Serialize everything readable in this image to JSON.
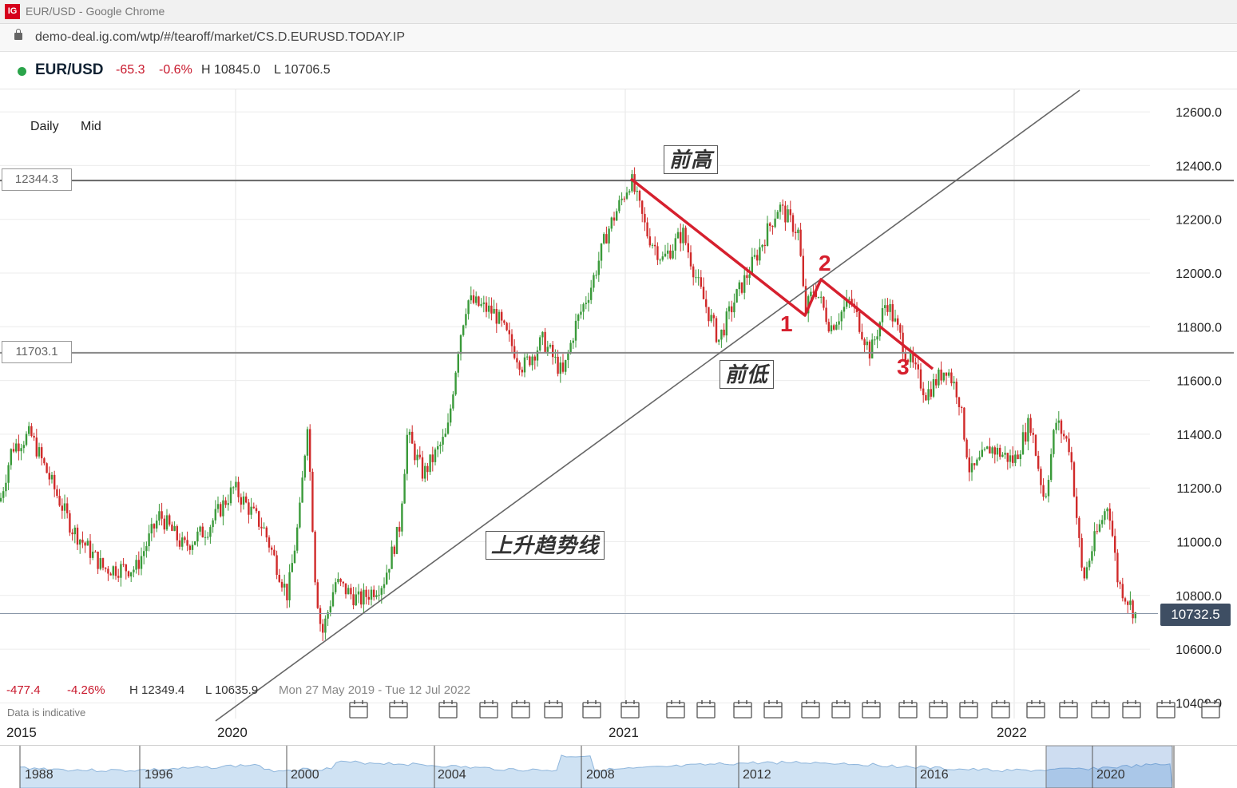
{
  "window": {
    "logo": "IG",
    "title": "EUR/USD - Google Chrome"
  },
  "address": {
    "url": "demo-deal.ig.com/wtp/#/tearoff/market/CS.D.EURUSD.TODAY.IP"
  },
  "market": {
    "symbol": "EUR/USD",
    "change": "-65.3",
    "change_pct": "-0.6%",
    "high": "H 10845.0",
    "low": "L 10706.5",
    "status_color": "#2aa44a"
  },
  "toolbar": {
    "interval": "Daily",
    "price_type": "Mid"
  },
  "levels": {
    "upper": "12344.3",
    "lower": "11703.1",
    "current": "10732.5"
  },
  "annotations": {
    "prev_high": "前高",
    "prev_low": "前低",
    "uptrend_line": "上升趋势线",
    "point1": "1",
    "point2": "2",
    "point3": "3"
  },
  "stats": {
    "change": "-477.4",
    "change_pct": "-4.26%",
    "high": "H 12349.4",
    "low": "L 10635.9",
    "range": "Mon 27 May 2019 - Tue 12 Jul 2022",
    "disclaimer": "Data is indicative"
  },
  "time_axis": [
    "2015",
    "2020",
    "2021",
    "2022"
  ],
  "navigator_years": [
    "1988",
    "1996",
    "2000",
    "2004",
    "2008",
    "2012",
    "2016",
    "2020"
  ],
  "chart_data": {
    "type": "candlestick",
    "title": "EUR/USD",
    "y_ticks": [
      "12600.0",
      "12400.0",
      "12200.0",
      "12000.0",
      "11800.0",
      "11600.0",
      "11400.0",
      "11200.0",
      "11000.0",
      "10800.0",
      "10600.0",
      "10400.0"
    ],
    "ylim": [
      10400,
      12650
    ],
    "up_color": "#3a9a3a",
    "down_color": "#d02a2a",
    "close_path": [
      [
        0,
        11150
      ],
      [
        15,
        11350
      ],
      [
        38,
        11400
      ],
      [
        60,
        11250
      ],
      [
        90,
        11050
      ],
      [
        130,
        10900
      ],
      [
        170,
        10900
      ],
      [
        200,
        11100
      ],
      [
        230,
        10980
      ],
      [
        260,
        11050
      ],
      [
        293,
        11200
      ],
      [
        330,
        11050
      ],
      [
        360,
        10800
      ],
      [
        375,
        11100
      ],
      [
        385,
        11450
      ],
      [
        395,
        10850
      ],
      [
        403,
        10650
      ],
      [
        420,
        10850
      ],
      [
        450,
        10780
      ],
      [
        480,
        10850
      ],
      [
        500,
        11050
      ],
      [
        510,
        11400
      ],
      [
        530,
        11250
      ],
      [
        560,
        11400
      ],
      [
        575,
        11750
      ],
      [
        585,
        11900
      ],
      [
        620,
        11850
      ],
      [
        655,
        11650
      ],
      [
        680,
        11750
      ],
      [
        705,
        11620
      ],
      [
        720,
        11800
      ],
      [
        740,
        11950
      ],
      [
        760,
        12150
      ],
      [
        790,
        12350
      ],
      [
        810,
        12150
      ],
      [
        830,
        12050
      ],
      [
        855,
        12150
      ],
      [
        875,
        11950
      ],
      [
        900,
        11750
      ],
      [
        920,
        11900
      ],
      [
        945,
        12050
      ],
      [
        975,
        12250
      ],
      [
        1000,
        12150
      ],
      [
        1008,
        11850
      ],
      [
        1020,
        11950
      ],
      [
        1040,
        11800
      ],
      [
        1065,
        11900
      ],
      [
        1090,
        11700
      ],
      [
        1110,
        11900
      ],
      [
        1135,
        11700
      ],
      [
        1160,
        11550
      ],
      [
        1185,
        11650
      ],
      [
        1200,
        11550
      ],
      [
        1215,
        11250
      ],
      [
        1240,
        11350
      ],
      [
        1270,
        11300
      ],
      [
        1290,
        11450
      ],
      [
        1308,
        11150
      ],
      [
        1322,
        11450
      ],
      [
        1340,
        11350
      ],
      [
        1356,
        10850
      ],
      [
        1370,
        11000
      ],
      [
        1388,
        11150
      ],
      [
        1400,
        10850
      ],
      [
        1422,
        10730
      ]
    ]
  }
}
